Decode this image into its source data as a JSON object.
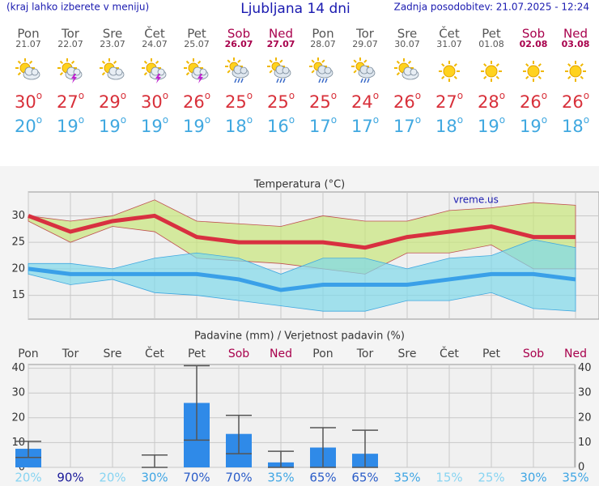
{
  "header": {
    "left": "(kraj lahko izberete v meniju)",
    "title": "Ljubljana 14 dni",
    "right": "Zadnja posodobitev: 21.07.2025 - 12:24"
  },
  "temp_unit": "o",
  "days": [
    {
      "name": "Pon",
      "date": "21.07",
      "max": 30,
      "min": 20,
      "color": "#555555"
    },
    {
      "name": "Tor",
      "date": "22.07",
      "max": 27,
      "min": 19,
      "color": "#555555"
    },
    {
      "name": "Sre",
      "date": "23.07",
      "max": 29,
      "min": 19,
      "color": "#555555"
    },
    {
      "name": "Čet",
      "date": "24.07",
      "max": 30,
      "min": 19,
      "color": "#555555"
    },
    {
      "name": "Pet",
      "date": "25.07",
      "max": 26,
      "min": 19,
      "color": "#555555"
    },
    {
      "name": "Sob",
      "date": "26.07",
      "max": 25,
      "min": 18,
      "color": "#a8004c"
    },
    {
      "name": "Ned",
      "date": "27.07",
      "max": 25,
      "min": 16,
      "color": "#a8004c"
    },
    {
      "name": "Pon",
      "date": "28.07",
      "max": 25,
      "min": 17,
      "color": "#555555"
    },
    {
      "name": "Tor",
      "date": "29.07",
      "max": 24,
      "min": 17,
      "color": "#555555"
    },
    {
      "name": "Sre",
      "date": "30.07",
      "max": 26,
      "min": 17,
      "color": "#555555"
    },
    {
      "name": "Čet",
      "date": "31.07",
      "max": 27,
      "min": 18,
      "color": "#555555"
    },
    {
      "name": "Pet",
      "date": "01.08",
      "max": 28,
      "min": 19,
      "color": "#555555"
    },
    {
      "name": "Sob",
      "date": "02.08",
      "max": 26,
      "min": 19,
      "color": "#a8004c"
    },
    {
      "name": "Ned",
      "date": "03.08",
      "max": 26,
      "min": 18,
      "color": "#a8004c"
    }
  ],
  "chart_data": [
    {
      "type": "line",
      "title": "Temperatura (°C)",
      "annotation": "vreme.us",
      "ylim": [
        10.5,
        34.5
      ],
      "yticks": [
        15,
        20,
        25,
        30
      ],
      "grid": true,
      "bands": [
        {
          "color": "#c8e67a",
          "upper": [
            30,
            29,
            30,
            33,
            29,
            28.5,
            28,
            30,
            29,
            29,
            31,
            31.5,
            32.5,
            32
          ],
          "lower": [
            29,
            25,
            28,
            27,
            22,
            21.5,
            21,
            20,
            19,
            23,
            23,
            24.5,
            20,
            20
          ]
        },
        {
          "color": "#7fd8ea",
          "upper": [
            21,
            21,
            20,
            22,
            23,
            22,
            19,
            22,
            22,
            20,
            22,
            22.5,
            25.5,
            24
          ],
          "lower": [
            19,
            17,
            18,
            15.5,
            15,
            14,
            13,
            12,
            12,
            14,
            14,
            15.5,
            12.5,
            12
          ]
        }
      ],
      "series": [
        {
          "color": "#d83040",
          "values": [
            30,
            27,
            29,
            30,
            26,
            25,
            25,
            25,
            24,
            26,
            27,
            28,
            26,
            26
          ]
        },
        {
          "color": "#3aa0e8",
          "values": [
            20,
            19,
            19,
            19,
            19,
            18,
            16,
            17,
            17,
            17,
            18,
            19,
            19,
            18
          ]
        }
      ]
    },
    {
      "type": "bar",
      "title": "Padavine (mm) / Verjetnost padavin (%)",
      "categories": [
        "Pon",
        "Tor",
        "Sre",
        "Čet",
        "Pet",
        "Sob",
        "Ned",
        "Pon",
        "Tor",
        "Sre",
        "Čet",
        "Pet",
        "Sob",
        "Ned"
      ],
      "category_colors": [
        "#444444",
        "#444444",
        "#444444",
        "#444444",
        "#444444",
        "#a8004c",
        "#a8004c",
        "#444444",
        "#444444",
        "#444444",
        "#444444",
        "#444444",
        "#a8004c",
        "#a8004c"
      ],
      "values": [
        7.5,
        0,
        0,
        0,
        26,
        13.5,
        2,
        8,
        5.5,
        0,
        0,
        0,
        0,
        0
      ],
      "error_low": [
        4,
        null,
        null,
        0,
        11,
        5.5,
        0,
        0,
        0,
        null,
        null,
        null,
        null,
        null
      ],
      "error_high": [
        10.5,
        null,
        null,
        5,
        41,
        21,
        6.5,
        16,
        15,
        null,
        null,
        null,
        null,
        null
      ],
      "color": "#2f8ae8",
      "ylim": [
        0,
        41.5
      ],
      "yticks": [
        0,
        10,
        20,
        30,
        40
      ],
      "y2lim": [
        0,
        41.5
      ],
      "y2ticks": [
        0,
        10,
        20,
        30,
        40
      ],
      "grid": true,
      "probabilities": [
        20,
        90,
        20,
        30,
        70,
        70,
        35,
        65,
        65,
        35,
        15,
        25,
        30,
        35
      ],
      "probability_labels": [
        "20%",
        "90%",
        "20%",
        "30%",
        "70%",
        "70%",
        "35%",
        "65%",
        "65%",
        "35%",
        "15%",
        "25%",
        "30%",
        "35%"
      ]
    }
  ]
}
